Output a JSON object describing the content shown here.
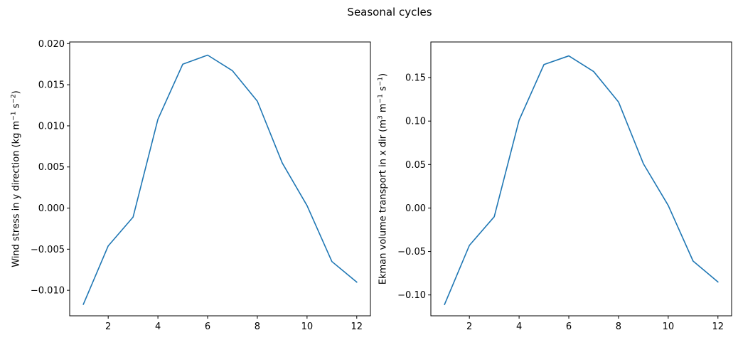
{
  "figure": {
    "title": "Seasonal cycles"
  },
  "chart_data": [
    {
      "type": "line",
      "title": "",
      "xlabel": "",
      "ylabel": {
        "prefix": "Wind stress in y direction (kg m",
        "sup1": "−1",
        "middle": " s",
        "sup2": "−2",
        "suffix": ")"
      },
      "xlim": [
        0.45,
        12.55
      ],
      "ylim": [
        -0.0131,
        0.0202
      ],
      "xticks": [
        2,
        4,
        6,
        8,
        10,
        12
      ],
      "xtick_labels": [
        "2",
        "4",
        "6",
        "8",
        "10",
        "12"
      ],
      "yticks": [
        -0.01,
        -0.005,
        0.0,
        0.005,
        0.01,
        0.015,
        0.02
      ],
      "ytick_labels": [
        "−0.010",
        "−0.005",
        "0.000",
        "0.005",
        "0.010",
        "0.015",
        "0.020"
      ],
      "grid": false,
      "series": [
        {
          "color": "#1f77b4",
          "x": [
            1,
            2,
            3,
            4,
            5,
            6,
            7,
            8,
            9,
            10,
            11,
            12
          ],
          "y": [
            -0.0117,
            -0.0046,
            -0.0011,
            0.0108,
            0.0175,
            0.0186,
            0.0167,
            0.013,
            0.0055,
            0.0003,
            -0.0065,
            -0.009
          ]
        }
      ]
    },
    {
      "type": "line",
      "title": "",
      "xlabel": "",
      "ylabel": {
        "prefix": "Ekman volume transport in x dir (m",
        "sup1": "3",
        "middle": " m",
        "sup2": "−1",
        "middle2": " s",
        "sup3": "−1",
        "suffix": ")"
      },
      "xlim": [
        0.45,
        12.55
      ],
      "ylim": [
        -0.124,
        0.191
      ],
      "xticks": [
        2,
        4,
        6,
        8,
        10,
        12
      ],
      "xtick_labels": [
        "2",
        "4",
        "6",
        "8",
        "10",
        "12"
      ],
      "yticks": [
        -0.1,
        -0.05,
        0.0,
        0.05,
        0.1,
        0.15
      ],
      "ytick_labels": [
        "−0.10",
        "−0.05",
        "0.00",
        "0.05",
        "0.10",
        "0.15"
      ],
      "grid": false,
      "series": [
        {
          "color": "#1f77b4",
          "x": [
            1,
            2,
            3,
            4,
            5,
            6,
            7,
            8,
            9,
            10,
            11,
            12
          ],
          "y": [
            -0.111,
            -0.043,
            -0.01,
            0.101,
            0.165,
            0.175,
            0.157,
            0.122,
            0.051,
            0.003,
            -0.061,
            -0.085
          ]
        }
      ]
    }
  ]
}
